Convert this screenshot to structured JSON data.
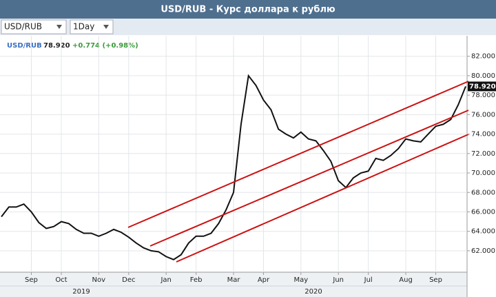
{
  "chart_data": {
    "type": "line",
    "title": "USD/RUB - Курс доллара к рублю",
    "toolbar": {
      "symbol": "USD/RUB",
      "interval": "1Day"
    },
    "legend": {
      "symbol": "USD/RUB",
      "last_price": "78.920",
      "change": "+0.774 (+0.98%)"
    },
    "categories": [
      null,
      null,
      null,
      null,
      "Sep",
      null,
      null,
      null,
      "Oct",
      null,
      null,
      null,
      null,
      "Nov",
      null,
      null,
      null,
      "Dec",
      null,
      null,
      null,
      null,
      "Jan",
      null,
      null,
      null,
      "Feb",
      null,
      null,
      null,
      null,
      "Mar",
      null,
      null,
      null,
      "Apr",
      null,
      null,
      null,
      null,
      "May",
      null,
      null,
      null,
      null,
      "Jun",
      null,
      null,
      null,
      "Jul",
      null,
      null,
      null,
      null,
      "Aug",
      null,
      null,
      null,
      "Sep",
      null,
      null,
      null,
      null
    ],
    "year_labels": [
      "2019",
      "2020"
    ],
    "series": [
      {
        "name": "USD/RUB",
        "color": "#111111",
        "values": [
          65.5,
          66.5,
          66.5,
          66.8,
          66.0,
          64.9,
          64.3,
          64.5,
          65.0,
          64.8,
          64.2,
          63.8,
          63.8,
          63.5,
          63.8,
          64.2,
          63.9,
          63.4,
          62.8,
          62.3,
          62.0,
          61.9,
          61.4,
          61.1,
          61.6,
          62.8,
          63.5,
          63.5,
          63.8,
          64.8,
          66.2,
          68.0,
          75.0,
          80.0,
          79.0,
          77.5,
          76.5,
          74.5,
          74.0,
          73.6,
          74.2,
          73.5,
          73.3,
          72.3,
          71.2,
          69.2,
          68.5,
          69.5,
          70.0,
          70.2,
          71.5,
          71.3,
          71.8,
          72.5,
          73.5,
          73.3,
          73.2,
          74.0,
          74.8,
          75.0,
          75.5,
          77.0,
          78.9
        ]
      }
    ],
    "ylim": [
      59.8,
      84.1
    ],
    "yticks": [
      {
        "value": 62,
        "label": "62.000"
      },
      {
        "value": 64,
        "label": "64.000"
      },
      {
        "value": 66,
        "label": "66.000"
      },
      {
        "value": 68,
        "label": "68.000"
      },
      {
        "value": 70,
        "label": "70.000"
      },
      {
        "value": 72,
        "label": "72.000"
      },
      {
        "value": 74,
        "label": "74.000"
      },
      {
        "value": 76,
        "label": "76.000"
      },
      {
        "value": 78,
        "label": "78.000"
      },
      {
        "value": 80,
        "label": "80.000"
      },
      {
        "value": 82,
        "label": "82.000"
      }
    ],
    "grid": true
  }
}
